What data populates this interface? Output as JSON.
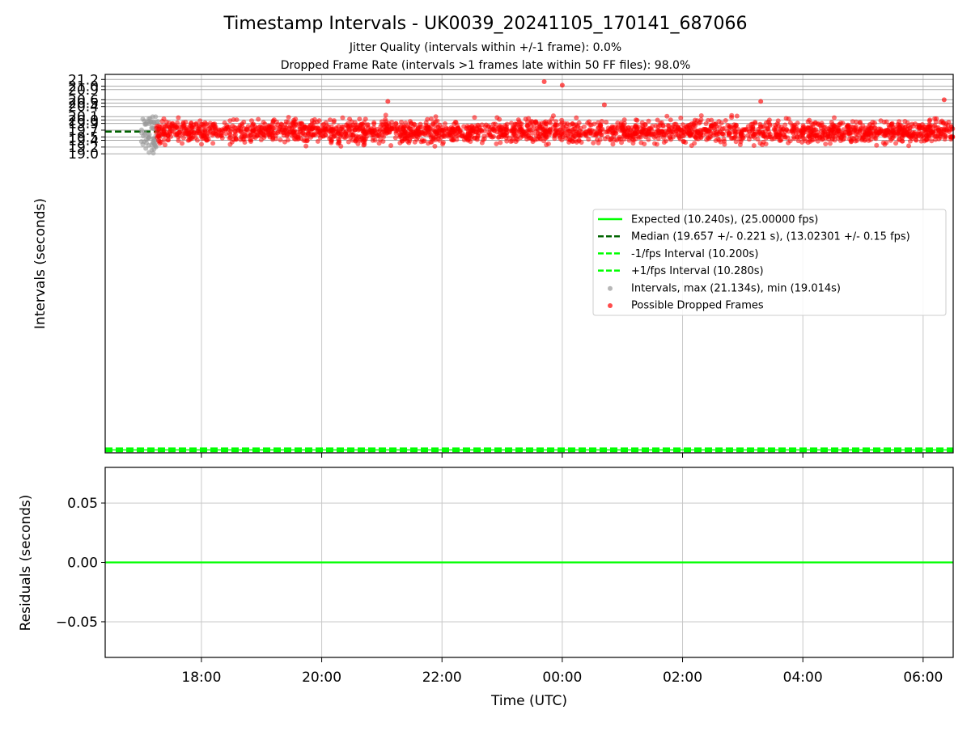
{
  "title": "Timestamp Intervals - UK0039_20241105_170141_687066",
  "subtitle_1": "Jitter Quality (intervals within +/-1 frame): 0.0%",
  "subtitle_2": "Dropped Frame Rate (intervals >1 frames late within 50 FF files): 98.0%",
  "chart_data": [
    {
      "type": "scatter",
      "ylabel": "Intervals (seconds)",
      "xlabel": "",
      "x_ticks": [
        "18:00",
        "20:00",
        "22:00",
        "00:00",
        "02:00",
        "04:00",
        "06:00"
      ],
      "x_range_hours": [
        16.4,
        30.5
      ],
      "ylim": [
        10.2,
        21.35
      ],
      "y_ticks": [
        "19.0",
        "19.2",
        "19.4",
        "19.5",
        "19.7",
        "19.9",
        "20.0",
        "20.1",
        "20.4",
        "20.5",
        "20.6",
        "20.9",
        "21.0",
        "21.2"
      ],
      "grid": true,
      "legend_position": "center-right",
      "legend": [
        {
          "label": "Expected (10.240s), (25.00000 fps)",
          "style": "solid",
          "color": "#00ff00"
        },
        {
          "label": "Median (19.657 +/- 0.221 s), (13.02301 +/- 0.15 fps)",
          "style": "dashed",
          "color": "#006400"
        },
        {
          "label": "-1/fps Interval (10.200s)",
          "style": "dashed",
          "color": "#00ff00"
        },
        {
          "label": "+1/fps Interval (10.280s)",
          "style": "dashed",
          "color": "#00ff00"
        },
        {
          "label": "Intervals, max (21.134s), min (19.014s)",
          "style": "marker",
          "color": "#999999"
        },
        {
          "label": "Possible Dropped Frames",
          "style": "marker",
          "color": "#ff0000"
        }
      ],
      "expected": 10.24,
      "lower_interval": 10.2,
      "upper_interval": 10.28,
      "median": 19.657,
      "median_x_range_hours": [
        16.4,
        17.3
      ],
      "series": [
        {
          "name": "Intervals, max (21.134s), min (19.014s)",
          "color": "#999999",
          "x_range_hours": [
            17.0,
            17.3
          ],
          "approx_count": 60,
          "y_min": 19.014,
          "y_max": 20.1
        },
        {
          "name": "Possible Dropped Frames",
          "color": "#ff0000",
          "x_range_hours": [
            17.25,
            30.5
          ],
          "approx_count": 2400,
          "center": 19.66,
          "spread": 0.22,
          "y_max": 21.134
        }
      ],
      "outliers": [
        {
          "x": 23.7,
          "y": 21.134
        },
        {
          "x": 24.0,
          "y": 21.03
        },
        {
          "x": 21.1,
          "y": 20.55
        },
        {
          "x": 24.7,
          "y": 20.45
        },
        {
          "x": 27.3,
          "y": 20.55
        },
        {
          "x": 30.35,
          "y": 20.6
        }
      ]
    },
    {
      "type": "line",
      "ylabel": "Residuals (seconds)",
      "xlabel": "Time (UTC)",
      "x_ticks": [
        "18:00",
        "20:00",
        "22:00",
        "00:00",
        "02:00",
        "04:00",
        "06:00"
      ],
      "x_range_hours": [
        16.4,
        30.5
      ],
      "ylim": [
        -0.08,
        0.08
      ],
      "y_ticks": [
        "0.05",
        "0.00",
        "−0.05"
      ],
      "grid": true,
      "series": [
        {
          "color": "#00ff00",
          "y": 0.0
        }
      ]
    }
  ]
}
